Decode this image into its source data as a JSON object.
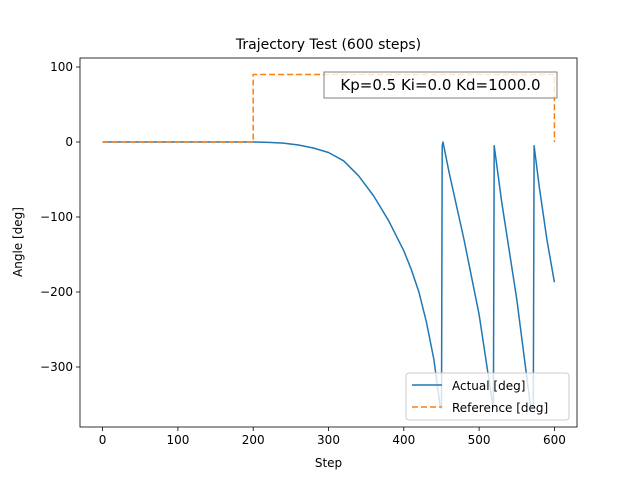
{
  "chart_data": {
    "type": "line",
    "title": "Trajectory Test (600 steps)",
    "xlabel": "Step",
    "ylabel": "Angle [deg]",
    "xlim": [
      -30,
      630
    ],
    "ylim": [
      -380,
      112
    ],
    "x_ticks": [
      0,
      100,
      200,
      300,
      400,
      500,
      600
    ],
    "y_ticks": [
      100,
      0,
      -100,
      -200,
      -300
    ],
    "y_tick_labels": [
      "100",
      "0",
      "−100",
      "−200",
      "−300"
    ],
    "annotation": "Kp=0.5 Ki=0.0 Kd=1000.0",
    "grid": false,
    "legend_position": "lower-right",
    "series": [
      {
        "name": "Actual [deg]",
        "color": "#1f77b4",
        "style": "solid",
        "points": [
          [
            0,
            0
          ],
          [
            200,
            0
          ],
          [
            220,
            -0.5
          ],
          [
            240,
            -1.5
          ],
          [
            260,
            -4
          ],
          [
            280,
            -8
          ],
          [
            300,
            -14
          ],
          [
            320,
            -25
          ],
          [
            340,
            -45
          ],
          [
            360,
            -72
          ],
          [
            380,
            -105
          ],
          [
            400,
            -145
          ],
          [
            410,
            -170
          ],
          [
            420,
            -200
          ],
          [
            430,
            -240
          ],
          [
            440,
            -290
          ],
          [
            448,
            -350
          ],
          [
            450,
            -355
          ],
          [
            451,
            -5
          ],
          [
            452,
            0
          ],
          [
            460,
            -40
          ],
          [
            480,
            -130
          ],
          [
            500,
            -230
          ],
          [
            518,
            -350
          ],
          [
            519,
            -355
          ],
          [
            520,
            -5
          ],
          [
            530,
            -80
          ],
          [
            550,
            -210
          ],
          [
            568,
            -350
          ],
          [
            572,
            -355
          ],
          [
            573,
            -5
          ],
          [
            580,
            -60
          ],
          [
            590,
            -130
          ],
          [
            600,
            -187
          ]
        ]
      },
      {
        "name": "Reference [deg]",
        "color": "#ff7f0e",
        "style": "dashed",
        "points": [
          [
            0,
            0
          ],
          [
            200,
            0
          ],
          [
            200,
            90
          ],
          [
            600,
            90
          ],
          [
            600,
            0
          ]
        ]
      }
    ]
  }
}
